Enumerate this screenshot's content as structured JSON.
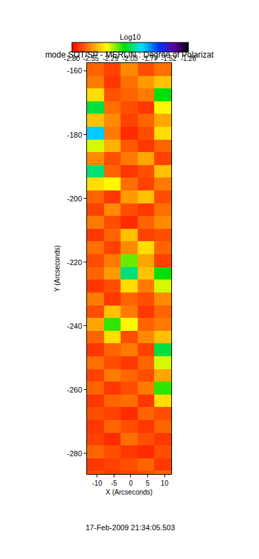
{
  "chart_data": {
    "type": "heatmap",
    "title": "mode SOT/SP - MERLIN : Degree of Polarizat",
    "x_label": "X (Arcseconds)",
    "y_label": "Y (Arcseconds)",
    "colorbar_title": "Log10",
    "annotations": [
      "17-Feb-2009 21:34:05.503"
    ],
    "xlim": [
      -13,
      12
    ],
    "xticks": [
      -10,
      -5,
      0,
      5,
      10
    ],
    "ylim": [
      -286.5,
      -157.5
    ],
    "yticks": [
      -160,
      -180,
      -200,
      -220,
      -240,
      -260,
      -280
    ],
    "zlim": [
      -2.8,
      -1.26
    ],
    "zticks": [
      {
        "value": -2.8,
        "label": "-2.80"
      },
      -2.55,
      -2.29,
      -2.03,
      -1.77,
      -1.52,
      -1.26
    ],
    "x": [
      -10.5,
      -5.5,
      -0.5,
      4.5,
      9.5
    ],
    "y": [
      -159.5,
      -163.5,
      -167.5,
      -171.5,
      -175.5,
      -179.5,
      -183.5,
      -187.5,
      -191.5,
      -195.5,
      -199.5,
      -203.5,
      -207.5,
      -211.5,
      -215.5,
      -219.5,
      -223.5,
      -227.5,
      -231.5,
      -235.5,
      -239.5,
      -243.5,
      -247.5,
      -251.5,
      -255.5,
      -259.5,
      -263.5,
      -267.5,
      -271.5,
      -275.5,
      -279.5,
      -283.5,
      -287.5
    ],
    "z": [
      [
        -2.62,
        -2.68,
        -2.55,
        -2.66,
        -2.6
      ],
      [
        -2.58,
        -2.7,
        -2.6,
        -2.52,
        -2.45
      ],
      [
        -2.4,
        -2.65,
        -2.62,
        -2.58,
        -2.1
      ],
      [
        -2.05,
        -2.6,
        -2.66,
        -2.7,
        -2.35
      ],
      [
        -2.45,
        -2.55,
        -2.68,
        -2.62,
        -2.5
      ],
      [
        -1.85,
        -2.58,
        -2.72,
        -2.66,
        -2.4
      ],
      [
        -2.3,
        -2.48,
        -2.64,
        -2.7,
        -2.62
      ],
      [
        -2.55,
        -2.66,
        -2.58,
        -2.5,
        -2.68
      ],
      [
        -2.0,
        -2.62,
        -2.7,
        -2.66,
        -2.45
      ],
      [
        -2.4,
        -2.35,
        -2.6,
        -2.68,
        -2.58
      ],
      [
        -2.62,
        -2.7,
        -2.52,
        -2.45,
        -2.66
      ],
      [
        -2.68,
        -2.55,
        -2.66,
        -2.7,
        -2.6
      ],
      [
        -2.58,
        -2.66,
        -2.72,
        -2.62,
        -2.55
      ],
      [
        -2.7,
        -2.62,
        -2.45,
        -2.68,
        -2.66
      ],
      [
        -2.6,
        -2.68,
        -2.55,
        -2.4,
        -2.62
      ],
      [
        -2.66,
        -2.58,
        -2.2,
        -2.5,
        -2.68
      ],
      [
        -2.62,
        -2.52,
        -2.0,
        -2.45,
        -2.1
      ],
      [
        -2.7,
        -2.66,
        -2.4,
        -2.58,
        -2.3
      ],
      [
        -2.58,
        -2.7,
        -2.62,
        -2.66,
        -2.55
      ],
      [
        -2.66,
        -2.45,
        -2.58,
        -2.7,
        -2.62
      ],
      [
        -2.5,
        -2.15,
        -2.35,
        -2.62,
        -2.58
      ],
      [
        -2.62,
        -2.4,
        -2.66,
        -2.55,
        -2.45
      ],
      [
        -2.7,
        -2.62,
        -2.58,
        -2.68,
        -2.05
      ],
      [
        -2.6,
        -2.66,
        -2.7,
        -2.62,
        -2.3
      ],
      [
        -2.68,
        -2.58,
        -2.62,
        -2.66,
        -2.5
      ],
      [
        -2.62,
        -2.7,
        -2.66,
        -2.58,
        -2.15
      ],
      [
        -2.7,
        -2.62,
        -2.6,
        -2.7,
        -2.4
      ],
      [
        -2.66,
        -2.68,
        -2.72,
        -2.62,
        -2.66
      ],
      [
        -2.7,
        -2.62,
        -2.66,
        -2.7,
        -2.62
      ],
      [
        -2.68,
        -2.72,
        -2.6,
        -2.66,
        -2.7
      ],
      [
        -2.62,
        -2.66,
        -2.7,
        -2.72,
        -2.66
      ],
      [
        -2.7,
        -2.68,
        -2.66,
        -2.62,
        -2.7
      ],
      [
        -2.66,
        -2.7,
        -2.68,
        -2.66,
        -2.62
      ]
    ]
  }
}
